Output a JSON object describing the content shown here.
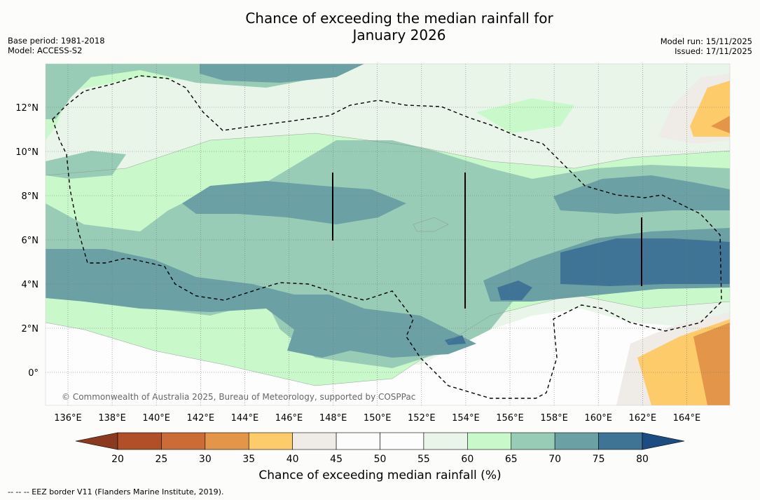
{
  "header": {
    "title_line1": "Chance of exceeding the median rainfall for",
    "title_line2": "January 2026",
    "base_period": "Base period: 1981-2018",
    "model": "Model: ACCESS-S2",
    "model_run": "Model run: 15/11/2025",
    "issued": "Issued: 17/11/2025"
  },
  "map": {
    "lat_labels": [
      "12°N",
      "10°N",
      "8°N",
      "6°N",
      "4°N",
      "2°N",
      "0°"
    ],
    "lon_labels": [
      "136°E",
      "138°E",
      "140°E",
      "142°E",
      "144°E",
      "146°E",
      "148°E",
      "150°E",
      "152°E",
      "154°E",
      "156°E",
      "158°E",
      "160°E",
      "162°E",
      "164°E"
    ],
    "copyright": "© Commonwealth of Australia 2025, Bureau of Meteorology, supported by COSPPac"
  },
  "colorbar": {
    "ticks": [
      "20",
      "25",
      "30",
      "35",
      "40",
      "45",
      "50",
      "55",
      "60",
      "65",
      "70",
      "75",
      "80"
    ],
    "colors": [
      "#8c3a1f",
      "#b04f28",
      "#cb6b35",
      "#e3954a",
      "#fecb6a",
      "#efebe7",
      "#fcfcfc",
      "#fdfdfd",
      "#eaf5ea",
      "#c9f9cb",
      "#99ccb7",
      "#6ba0a5",
      "#3f7497",
      "#1c4c81"
    ],
    "label": "Chance of exceeding median rainfall (%)"
  },
  "footer": {
    "legend": "--  --  -- EEZ border V11 (Flanders Marine Institute, 2019)."
  }
}
